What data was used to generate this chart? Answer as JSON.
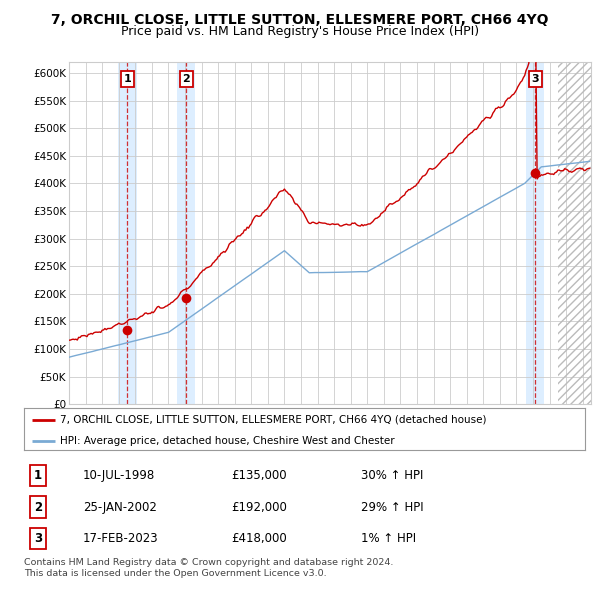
{
  "title": "7, ORCHIL CLOSE, LITTLE SUTTON, ELLESMERE PORT, CH66 4YQ",
  "subtitle": "Price paid vs. HM Land Registry's House Price Index (HPI)",
  "legend_line1": "7, ORCHIL CLOSE, LITTLE SUTTON, ELLESMERE PORT, CH66 4YQ (detached house)",
  "legend_line2": "HPI: Average price, detached house, Cheshire West and Chester",
  "footer1": "Contains HM Land Registry data © Crown copyright and database right 2024.",
  "footer2": "This data is licensed under the Open Government Licence v3.0.",
  "transactions": [
    {
      "num": 1,
      "date": "10-JUL-1998",
      "price": 135000,
      "hpi_pct": "30%",
      "x_year": 1998.53
    },
    {
      "num": 2,
      "date": "25-JAN-2002",
      "price": 192000,
      "hpi_pct": "29%",
      "x_year": 2002.07
    },
    {
      "num": 3,
      "date": "17-FEB-2023",
      "price": 418000,
      "hpi_pct": "1%",
      "x_year": 2023.13
    }
  ],
  "xmin": 1995.0,
  "xmax": 2026.5,
  "ymin": 0,
  "ymax": 620000,
  "yticks": [
    0,
    50000,
    100000,
    150000,
    200000,
    250000,
    300000,
    350000,
    400000,
    450000,
    500000,
    550000,
    600000
  ],
  "ytick_labels": [
    "£0",
    "£50K",
    "£100K",
    "£150K",
    "£200K",
    "£250K",
    "£300K",
    "£350K",
    "£400K",
    "£450K",
    "£500K",
    "£550K",
    "£600K"
  ],
  "hpi_color": "#7aaad4",
  "price_color": "#cc0000",
  "dot_color": "#cc0000",
  "bg_color": "#ffffff",
  "grid_color": "#cccccc",
  "shade_color": "#ddeeff",
  "title_fontsize": 10,
  "subtitle_fontsize": 9
}
